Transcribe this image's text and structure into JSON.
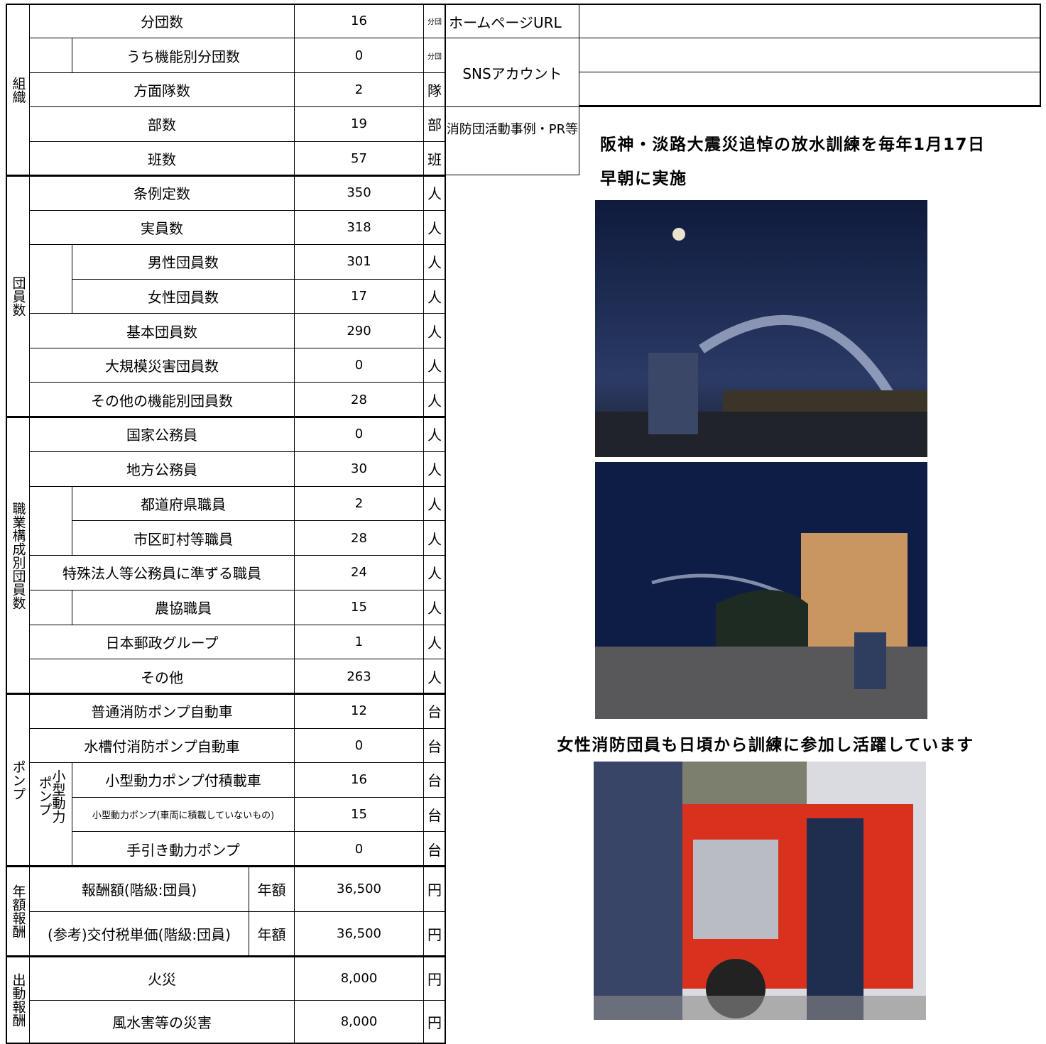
{
  "table": {
    "groups": [
      {
        "label": "組織",
        "rows": [
          {
            "label": "分団数",
            "value": "16",
            "unit": "分団",
            "rows": [
              {
                "label": "うち機能別分団数",
                "value": "0",
                "unit": "分団"
              }
            ]
          },
          {
            "label": "方面隊数",
            "value": "2",
            "unit": "隊"
          },
          {
            "label": "部数",
            "value": "19",
            "unit": "部"
          },
          {
            "label": "班数",
            "value": "57",
            "unit": "班"
          }
        ]
      },
      {
        "label": "団員数",
        "rows": [
          {
            "label": "条例定数",
            "value": "350",
            "unit": "人"
          },
          {
            "label": "実員数",
            "value": "318",
            "unit": "人",
            "rows": [
              {
                "label": "男性団員数",
                "value": "301",
                "unit": "人"
              },
              {
                "label": "女性団員数",
                "value": "17",
                "unit": "人"
              }
            ]
          },
          {
            "label": "基本団員数",
            "value": "290",
            "unit": "人"
          },
          {
            "label": "大規模災害団員数",
            "value": "0",
            "unit": "人"
          },
          {
            "label": "その他の機能別団員数",
            "value": "28",
            "unit": "人"
          }
        ]
      },
      {
        "label": "職業構成別団員数",
        "rows": [
          {
            "label": "国家公務員",
            "value": "0",
            "unit": "人"
          },
          {
            "label": "地方公務員",
            "value": "30",
            "unit": "人",
            "rows": [
              {
                "label": "都道府県職員",
                "value": "2",
                "unit": "人"
              },
              {
                "label": "市区町村等職員",
                "value": "28",
                "unit": "人"
              }
            ]
          },
          {
            "label": "特殊法人等公務員に準ずる職員",
            "value": "24",
            "unit": "人",
            "rows": [
              {
                "label": "農協職員",
                "value": "15",
                "unit": "人"
              }
            ]
          },
          {
            "label": "日本郵政グループ",
            "value": "1",
            "unit": "人"
          },
          {
            "label": "その他",
            "value": "263",
            "unit": "人"
          }
        ]
      },
      {
        "label": "ポンプ",
        "rows": [
          {
            "label": "普通消防ポンプ自動車",
            "value": "12",
            "unit": "台"
          },
          {
            "label": "水槽付消防ポンプ自動車",
            "value": "0",
            "unit": "台"
          },
          {
            "label": "小型動力ポンプ",
            "rows": [
              {
                "label": "小型動力ポンプ付積載車",
                "value": "16",
                "unit": "台"
              },
              {
                "label": "小型動力ポンプ(車両に積載していないもの)",
                "value": "15",
                "unit": "台"
              },
              {
                "label": "手引き動力ポンプ",
                "value": "0",
                "unit": "台"
              }
            ]
          }
        ]
      },
      {
        "label": "年額報酬",
        "rows": [
          {
            "label": "報酬額(階級:団員)",
            "basis": "年額",
            "value": "36,500",
            "unit": "円"
          },
          {
            "label": "(参考)交付税単価(階級:団員)",
            "basis": "年額",
            "value": "36,500",
            "unit": "円"
          }
        ]
      },
      {
        "label": "出動報酬",
        "rows": [
          {
            "label": "火災",
            "value": "8,000",
            "unit": "円"
          },
          {
            "label": "風水害等の災害",
            "value": "8,000",
            "unit": "円"
          }
        ]
      }
    ]
  },
  "info": {
    "homepage_label": "ホームページURL",
    "sns_label": "SNSアカウント",
    "pr_label": "消防団活動事例・PR等",
    "headline": "阪神・淡路大震災追悼の放水訓練を毎年1月17日早朝に実施",
    "caption": "女性消防団員も日頃から訓練に参加し活躍しています"
  }
}
